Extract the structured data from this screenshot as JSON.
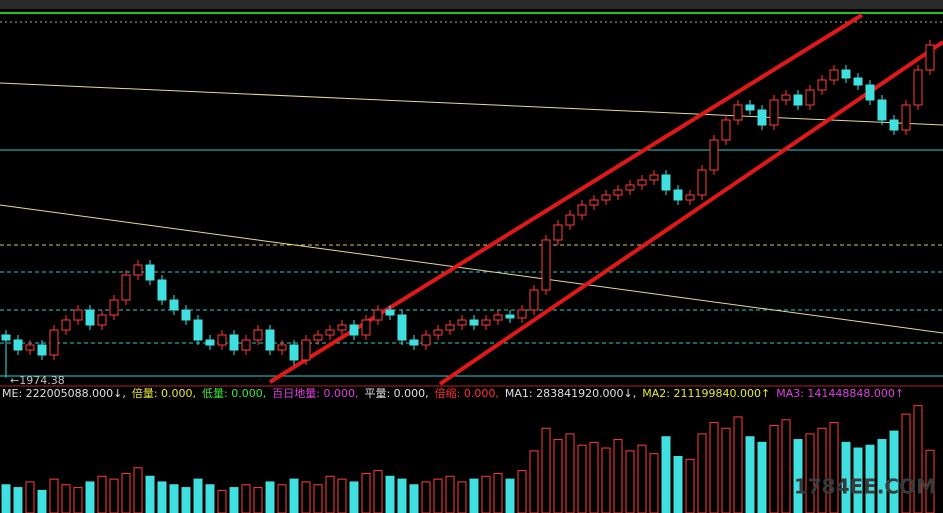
{
  "chart_data": {
    "type": "candlestick",
    "annotation": "←1974.38",
    "watermark": "1784EE.COM",
    "ylim": [
      1960,
      2680
    ],
    "open": [
      2060,
      2050,
      2030,
      2040,
      2020,
      2070,
      2090,
      2110,
      2080,
      2100,
      2130,
      2180,
      2200,
      2170,
      2130,
      2110,
      2090,
      2050,
      2040,
      2060,
      2030,
      2050,
      2070,
      2030,
      2040,
      2010,
      2050,
      2060,
      2070,
      2080,
      2060,
      2090,
      2110,
      2100,
      2050,
      2040,
      2060,
      2070,
      2080,
      2090,
      2080,
      2090,
      2100,
      2094,
      2110,
      2150,
      2250,
      2280,
      2300,
      2320,
      2330,
      2340,
      2350,
      2360,
      2370,
      2380,
      2350,
      2330,
      2340,
      2390,
      2450,
      2490,
      2520,
      2510,
      2480,
      2530,
      2540,
      2520,
      2550,
      2570,
      2590,
      2574,
      2560,
      2530,
      2490,
      2470,
      2520,
      2590
    ],
    "close": [
      2050,
      2030,
      2040,
      2020,
      2070,
      2090,
      2110,
      2080,
      2100,
      2130,
      2180,
      2200,
      2170,
      2130,
      2110,
      2090,
      2050,
      2040,
      2060,
      2030,
      2050,
      2070,
      2030,
      2040,
      2010,
      2050,
      2060,
      2070,
      2080,
      2060,
      2090,
      2110,
      2100,
      2050,
      2040,
      2060,
      2070,
      2080,
      2090,
      2080,
      2090,
      2100,
      2094,
      2110,
      2150,
      2250,
      2280,
      2300,
      2320,
      2330,
      2340,
      2350,
      2360,
      2370,
      2380,
      2350,
      2330,
      2340,
      2390,
      2450,
      2490,
      2520,
      2510,
      2480,
      2530,
      2540,
      2520,
      2550,
      2570,
      2590,
      2574,
      2560,
      2530,
      2490,
      2470,
      2520,
      2590,
      2640
    ],
    "high": [
      2070,
      2060,
      2050,
      2050,
      2080,
      2100,
      2120,
      2120,
      2110,
      2140,
      2190,
      2210,
      2210,
      2180,
      2140,
      2120,
      2100,
      2060,
      2070,
      2070,
      2060,
      2080,
      2080,
      2050,
      2050,
      2060,
      2070,
      2080,
      2090,
      2090,
      2100,
      2120,
      2120,
      2110,
      2060,
      2070,
      2080,
      2090,
      2100,
      2100,
      2100,
      2110,
      2110,
      2120,
      2160,
      2260,
      2290,
      2310,
      2330,
      2340,
      2350,
      2360,
      2370,
      2380,
      2390,
      2390,
      2360,
      2350,
      2400,
      2460,
      2500,
      2530,
      2530,
      2520,
      2540,
      2550,
      2550,
      2560,
      2580,
      2600,
      2600,
      2584,
      2570,
      2540,
      2500,
      2530,
      2600,
      2650
    ],
    "low": [
      1974.38,
      2020,
      2020,
      2010,
      2010,
      2060,
      2080,
      2070,
      2070,
      2090,
      2120,
      2170,
      2160,
      2120,
      2100,
      2080,
      2040,
      2030,
      2030,
      2020,
      2020,
      2040,
      2020,
      2020,
      2000,
      2000,
      2040,
      2050,
      2060,
      2050,
      2050,
      2080,
      2090,
      2040,
      2030,
      2030,
      2050,
      2060,
      2070,
      2070,
      2070,
      2080,
      2084,
      2084,
      2100,
      2140,
      2240,
      2270,
      2290,
      2310,
      2320,
      2330,
      2340,
      2350,
      2360,
      2340,
      2320,
      2320,
      2330,
      2380,
      2440,
      2480,
      2500,
      2470,
      2470,
      2520,
      2510,
      2510,
      2540,
      2560,
      2564,
      2550,
      2520,
      2480,
      2460,
      2460,
      2510,
      2580
    ],
    "volume_ylim": [
      0,
      400000000
    ],
    "volume": [
      100000000.0,
      90000000.0,
      110000000.0,
      80000000.0,
      120000000.0,
      100000000.0,
      90000000.0,
      110000000.0,
      130000000.0,
      120000000.0,
      140000000.0,
      160000000.0,
      130000000.0,
      110000000.0,
      100000000.0,
      90000000.0,
      120000000.0,
      100000000.0,
      80000000.0,
      90000000.0,
      100000000.0,
      90000000.0,
      110000000.0,
      100000000.0,
      120000000.0,
      110000000.0,
      100000000.0,
      130000000.0,
      120000000.0,
      110000000.0,
      140000000.0,
      150000000.0,
      130000000.0,
      120000000.0,
      100000000.0,
      110000000.0,
      120000000.0,
      130000000.0,
      110000000.0,
      120000000.0,
      130000000.0,
      140000000.0,
      120000000.0,
      150000000.0,
      220000000.0,
      300000000.0,
      260000000.0,
      280000000.0,
      240000000.0,
      250000000.0,
      230000000.0,
      260000000.0,
      220000000.0,
      240000000.0,
      210000000.0,
      270000000.0,
      200000000.0,
      190000000.0,
      280000000.0,
      320000000.0,
      300000000.0,
      340000000.0,
      270000000.0,
      250000000.0,
      310000000.0,
      330000000.0,
      260000000.0,
      280000000.0,
      300000000.0,
      320000000.0,
      250000000.0,
      230000000.0,
      240000000.0,
      260000000.0,
      290000000.0,
      350000000.0,
      380000000.0,
      222005088
    ],
    "indicators": [
      {
        "text": "ME: 222005088.000↓,",
        "color": "#e0e0e0"
      },
      {
        "text": "倍量: 0.000,",
        "color": "#e8e83a"
      },
      {
        "text": "低量: 0.000,",
        "color": "#3ae83a"
      },
      {
        "text": "百日地量: 0.000,",
        "color": "#e040e0"
      },
      {
        "text": "平量: 0.000,",
        "color": "#e0e0e0"
      },
      {
        "text": "倍缩: 0.000,",
        "color": "#ff3030"
      },
      {
        "text": "MA1: 283841920.000↓,",
        "color": "#e0e0e0"
      },
      {
        "text": "MA2: 211199840.000↑",
        "color": "#e8e83a"
      },
      {
        "text": "MA3: 141448848.000↑",
        "color": "#e040e0"
      }
    ]
  }
}
